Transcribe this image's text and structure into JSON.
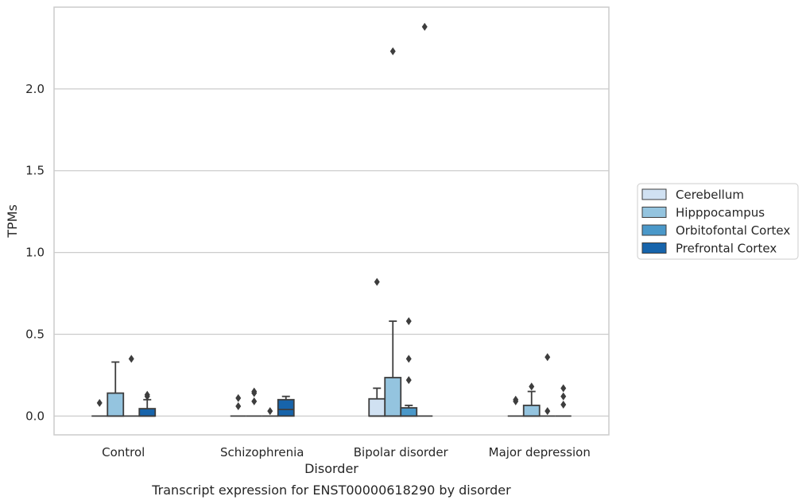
{
  "caption": "Transcript expression for ENST00000618290 by disorder",
  "chart_data": {
    "type": "box",
    "xlabel": "Disorder",
    "ylabel": "TPMs",
    "categories": [
      "Control",
      "Schizophrenia",
      "Bipolar disorder",
      "Major depression"
    ],
    "ylim": [
      -0.115,
      2.5
    ],
    "yticks": [
      0.0,
      0.5,
      1.0,
      1.5,
      2.0
    ],
    "ytick_labels": [
      "0.0",
      "0.5",
      "1.0",
      "1.5",
      "2.0"
    ],
    "grid": "horizontal",
    "legend_position": "right",
    "series": [
      {
        "name": "Cerebellum",
        "color": "#d0e1f2",
        "boxes": [
          {
            "q1": 0,
            "median": 0,
            "q3": 0,
            "whisker_low": 0,
            "whisker_high": 0,
            "outliers": [
              0.08
            ]
          },
          {
            "q1": 0,
            "median": 0,
            "q3": 0,
            "whisker_low": 0,
            "whisker_high": 0,
            "outliers": [
              0.06,
              0.11
            ]
          },
          {
            "q1": 0,
            "median": 0,
            "q3": 0.105,
            "whisker_low": 0,
            "whisker_high": 0.17,
            "outliers": [
              0.82
            ]
          },
          {
            "q1": 0,
            "median": 0,
            "q3": 0,
            "whisker_low": 0,
            "whisker_high": 0,
            "outliers": [
              0.09,
              0.1
            ]
          }
        ]
      },
      {
        "name": "Hipppocampus",
        "color": "#94c4df",
        "boxes": [
          {
            "q1": 0,
            "median": 0,
            "q3": 0.14,
            "whisker_low": 0,
            "whisker_high": 0.33,
            "outliers": []
          },
          {
            "q1": 0,
            "median": 0,
            "q3": 0,
            "whisker_low": 0,
            "whisker_high": 0,
            "outliers": [
              0.09,
              0.14,
              0.15
            ]
          },
          {
            "q1": 0,
            "median": 0,
            "q3": 0.235,
            "whisker_low": 0,
            "whisker_high": 0.58,
            "outliers": [
              2.23
            ]
          },
          {
            "q1": 0,
            "median": 0,
            "q3": 0.065,
            "whisker_low": 0,
            "whisker_high": 0.15,
            "outliers": [
              0.18
            ]
          }
        ]
      },
      {
        "name": "Orbitofontal Cortex",
        "color": "#4a98c9",
        "boxes": [
          {
            "q1": 0,
            "median": 0,
            "q3": 0,
            "whisker_low": 0,
            "whisker_high": 0,
            "outliers": [
              0.35
            ]
          },
          {
            "q1": 0,
            "median": 0,
            "q3": 0,
            "whisker_low": 0,
            "whisker_high": 0,
            "outliers": [
              0.03
            ]
          },
          {
            "q1": 0,
            "median": 0,
            "q3": 0.05,
            "whisker_low": 0,
            "whisker_high": 0.065,
            "outliers": [
              0.22,
              0.35,
              0.58
            ]
          },
          {
            "q1": 0,
            "median": 0,
            "q3": 0,
            "whisker_low": 0,
            "whisker_high": 0,
            "outliers": [
              0.03,
              0.36
            ]
          }
        ]
      },
      {
        "name": "Prefrontal Cortex",
        "color": "#1764ab",
        "boxes": [
          {
            "q1": 0,
            "median": 0,
            "q3": 0.045,
            "whisker_low": 0,
            "whisker_high": 0.1,
            "outliers": [
              0.12,
              0.13
            ]
          },
          {
            "q1": 0,
            "median": 0.04,
            "q3": 0.1,
            "whisker_low": 0,
            "whisker_high": 0.12,
            "outliers": []
          },
          {
            "q1": 0,
            "median": 0,
            "q3": 0,
            "whisker_low": 0,
            "whisker_high": 0,
            "outliers": [
              2.38
            ]
          },
          {
            "q1": 0,
            "median": 0,
            "q3": 0,
            "whisker_low": 0,
            "whisker_high": 0,
            "outliers": [
              0.07,
              0.12,
              0.17
            ]
          }
        ]
      }
    ]
  }
}
